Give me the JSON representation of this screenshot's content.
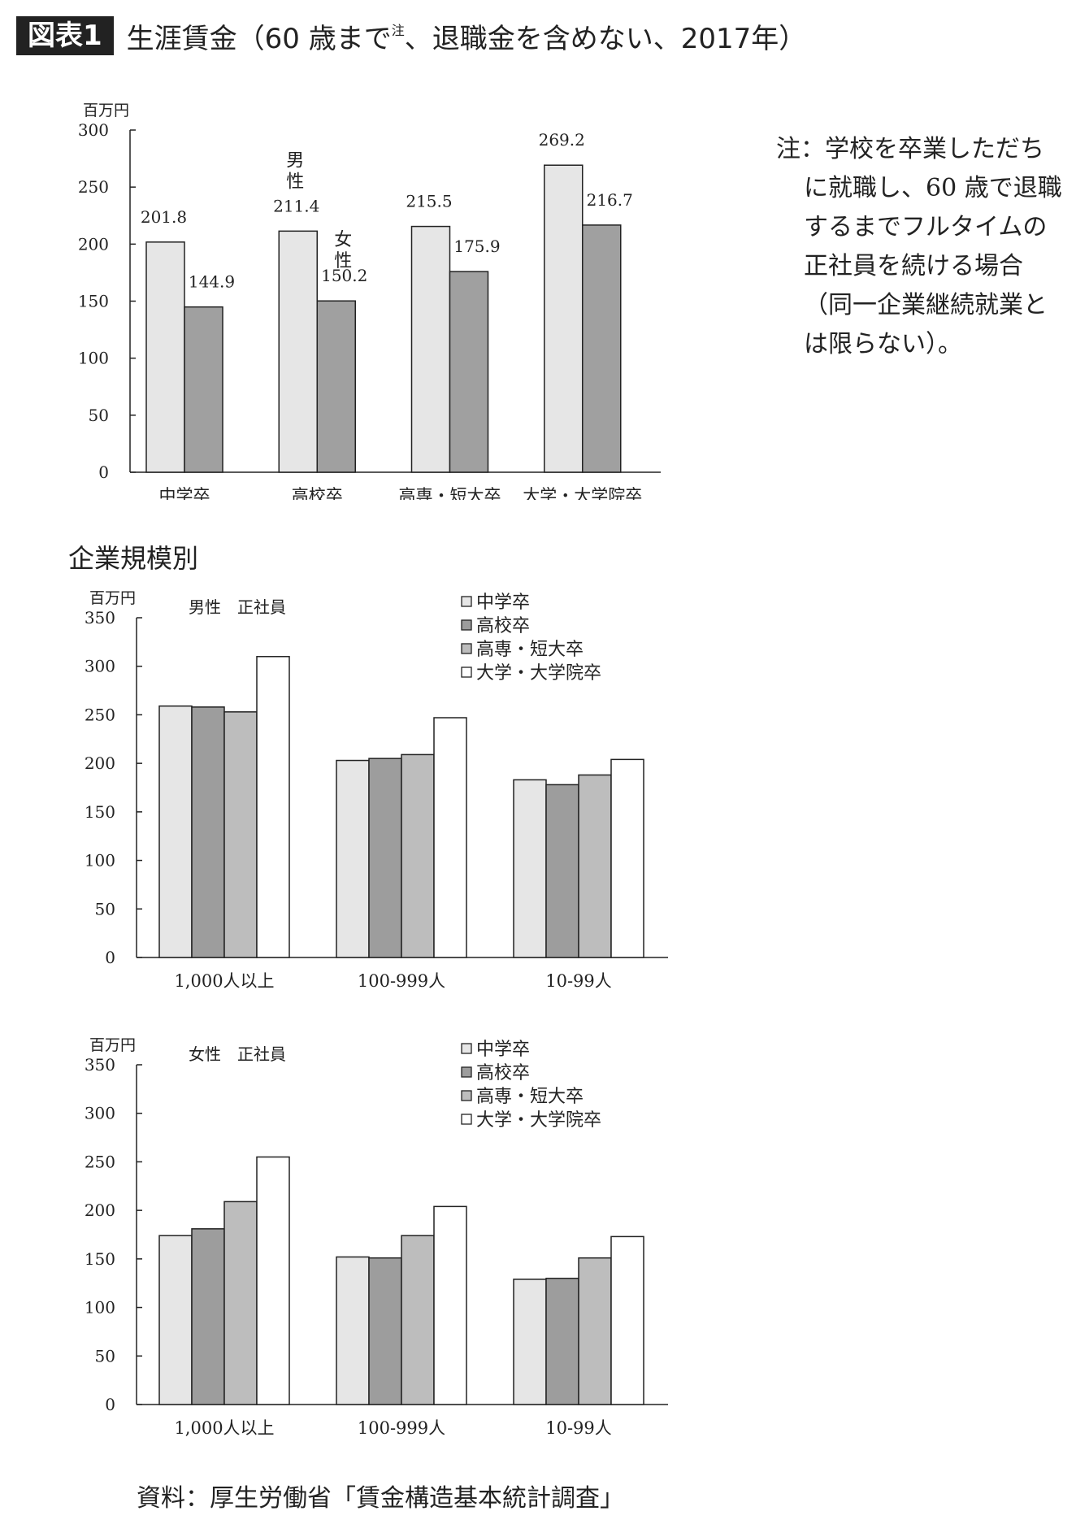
{
  "header": {
    "badge": "図表1",
    "title_main": "生涯賃金（60 歳まで",
    "title_sup": "注",
    "title_rest": "、退職金を含めない、2017年）"
  },
  "note": {
    "text": "注：学校を卒業しただちに就職し、60 歳で退職するまでフルタイムの正社員を続ける場合（同一企業継続就業とは限らない）。"
  },
  "section_label": "企業規模別",
  "source": "資料：厚生労働省「賃金構造基本統計調査」",
  "chart_data": [
    {
      "type": "bar",
      "unit_label": "百万円",
      "categories": [
        "中学卒",
        "高校卒",
        "高専・短大卒",
        "大学・大学院卒"
      ],
      "series": [
        {
          "name": "男性",
          "values": [
            201.8,
            211.4,
            215.5,
            269.2
          ],
          "color": "#e6e6e6"
        },
        {
          "name": "女性",
          "values": [
            144.9,
            150.2,
            175.9,
            216.7
          ],
          "color": "#a0a0a0"
        }
      ],
      "data_labels": [
        "201.8",
        "211.4",
        "215.5",
        "269.2",
        "144.9",
        "150.2",
        "175.9",
        "216.7"
      ],
      "ylim": [
        0,
        300
      ],
      "yticks": [
        "0",
        "50",
        "100",
        "150",
        "200",
        "250",
        "300"
      ],
      "annotations": [
        "男",
        "性",
        "女",
        "性"
      ],
      "grid": false
    },
    {
      "type": "bar",
      "unit_label": "百万円",
      "subtitle": "男性　正社員",
      "categories": [
        "1,000人以上",
        "100-999人",
        "10-99人"
      ],
      "series": [
        {
          "name": "中学卒",
          "values": [
            259,
            203,
            183
          ],
          "color": "#e6e6e6"
        },
        {
          "name": "高校卒",
          "values": [
            258,
            205,
            178
          ],
          "color": "#9d9d9d"
        },
        {
          "name": "高専・短大卒",
          "values": [
            253,
            209,
            188
          ],
          "color": "#bdbdbd"
        },
        {
          "name": "大学・大学院卒",
          "values": [
            310,
            247,
            204
          ],
          "color": "#ffffff"
        }
      ],
      "ylim": [
        0,
        350
      ],
      "yticks": [
        "0",
        "50",
        "100",
        "150",
        "200",
        "250",
        "300",
        "350"
      ],
      "legend_position": "top-right",
      "grid": false
    },
    {
      "type": "bar",
      "unit_label": "百万円",
      "subtitle": "女性　正社員",
      "categories": [
        "1,000人以上",
        "100-999人",
        "10-99人"
      ],
      "series": [
        {
          "name": "中学卒",
          "values": [
            174,
            152,
            129
          ],
          "color": "#e6e6e6"
        },
        {
          "name": "高校卒",
          "values": [
            181,
            151,
            130
          ],
          "color": "#9d9d9d"
        },
        {
          "name": "高専・短大卒",
          "values": [
            209,
            174,
            151
          ],
          "color": "#bdbdbd"
        },
        {
          "name": "大学・大学院卒",
          "values": [
            255,
            204,
            173
          ],
          "color": "#ffffff"
        }
      ],
      "ylim": [
        0,
        350
      ],
      "yticks": [
        "0",
        "50",
        "100",
        "150",
        "200",
        "250",
        "300",
        "350"
      ],
      "legend_position": "top-right",
      "grid": false
    }
  ]
}
